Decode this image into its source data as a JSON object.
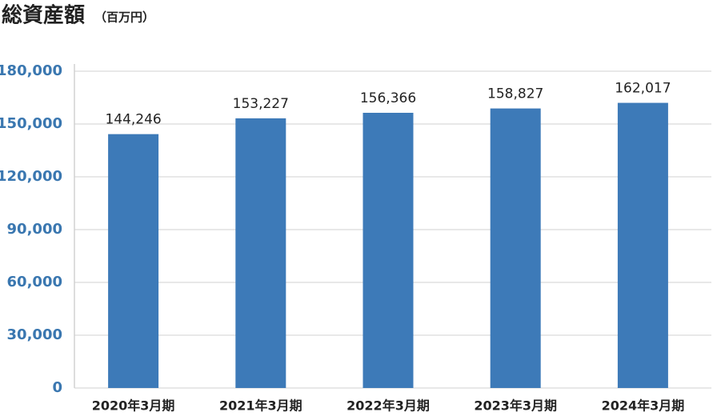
{
  "chart_data": {
    "type": "bar",
    "title": "総資産額",
    "subtitle": "（百万円）",
    "categories": [
      "2020年3月期",
      "2021年3月期",
      "2022年3月期",
      "2023年3月期",
      "2024年3月期"
    ],
    "values": [
      144246,
      153227,
      156366,
      158827,
      162017
    ],
    "value_labels": [
      "144,246",
      "153,227",
      "156,366",
      "158,827",
      "162,017"
    ],
    "color": "#3d7ab8",
    "ylim": [
      0,
      180000
    ],
    "yticks": [
      0,
      {
        "value": 30000,
        "label": "30,000"
      },
      {
        "value": 60000,
        "label": "60,000"
      },
      {
        "value": 90000,
        "label": "90,000"
      },
      {
        "value": 120000,
        "label": "120,000"
      },
      {
        "value": 150000,
        "label": "150,000"
      },
      {
        "value": 180000,
        "label": "180,000"
      }
    ],
    "grid": true
  }
}
